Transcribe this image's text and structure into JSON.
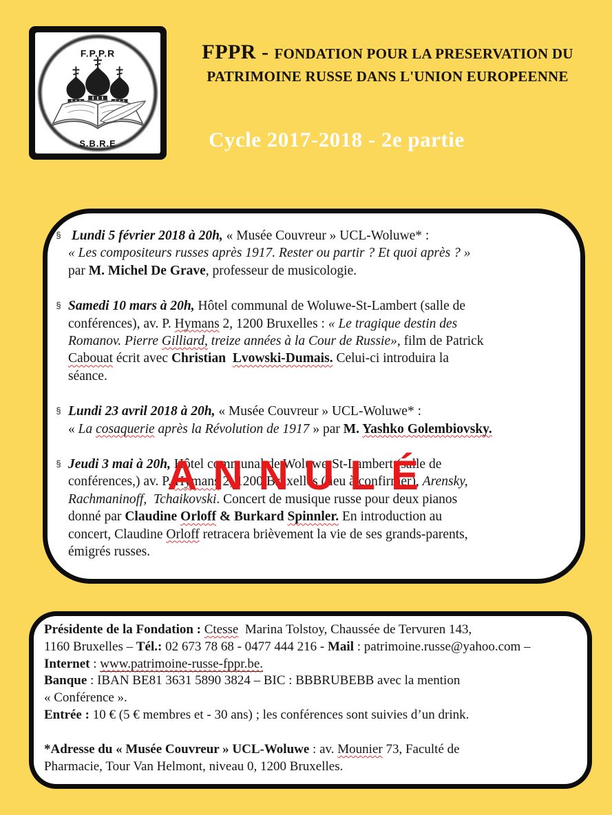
{
  "colors": {
    "background_yellow": "#FBD75A",
    "box_border_black": "#0d0d0d",
    "stamp_red": "#E61A1A",
    "squiggle_red": "#E03131",
    "cycle_white": "#FFFFFF"
  },
  "logo": {
    "top_text": "F.P.P.R",
    "bottom_text": "S.B.R.E"
  },
  "header": {
    "acronym": "FPPR - ",
    "org_line1": "FONDATION POUR LA PRESERVATION DU",
    "org_line2": "PATRIMOINE RUSSE DANS  L'UNION EUROPEENNE",
    "cycle": "Cycle  2017-2018 - 2e partie"
  },
  "stamp": {
    "text": "ANNULÉ"
  },
  "events": [
    {
      "bullet": "§",
      "segments": [
        {
          "c": "bi",
          "t": " Lundi 5 février 2018 à 20h,"
        },
        {
          "c": "",
          "t": " « Musée Couvreur » UCL-Woluwe* :\n"
        },
        {
          "c": "i",
          "t": "« Les compositeurs russes après 1917. Rester ou partir ? Et quoi après ? »"
        },
        {
          "c": "",
          "t": "\npar "
        },
        {
          "c": "b",
          "t": "M. Michel De Grave"
        },
        {
          "c": "",
          "t": ", professeur de musicologie."
        }
      ]
    },
    {
      "bullet": "§",
      "segments": [
        {
          "c": "bi",
          "t": "Samedi 10 mars à 20h,"
        },
        {
          "c": "",
          "t": " Hôtel communal de Woluwe-St-Lambert (salle de\nconférences), av. P. "
        },
        {
          "c": "sq",
          "t": "Hymans"
        },
        {
          "c": "",
          "t": " 2, 1200 Bruxelles : "
        },
        {
          "c": "i",
          "t": "« Le tragique destin des\nRomanov. Pierre "
        },
        {
          "c": "isq",
          "t": "Gilliard,"
        },
        {
          "c": "i",
          "t": " treize années à la Cour de Russie»,"
        },
        {
          "c": "",
          "t": " film de Patrick\n"
        },
        {
          "c": "sq",
          "t": "Cabouat"
        },
        {
          "c": "",
          "t": " écrit avec "
        },
        {
          "c": "b",
          "t": "Christian  "
        },
        {
          "c": "bsq",
          "t": "Lvowski-Dumais."
        },
        {
          "c": "",
          "t": " Celui-ci introduira la\nséance."
        }
      ]
    },
    {
      "bullet": "§",
      "segments": [
        {
          "c": "bi",
          "t": "Lundi 23 avril 2018 à 20h,"
        },
        {
          "c": "",
          "t": " « Musée Couvreur » UCL-Woluwe* :\n« "
        },
        {
          "c": "i",
          "t": "La "
        },
        {
          "c": "isq",
          "t": "cosaquerie"
        },
        {
          "c": "i",
          "t": " après la Révolution de 1917"
        },
        {
          "c": "",
          "t": " » par "
        },
        {
          "c": "b",
          "t": "M. "
        },
        {
          "c": "bsq",
          "t": "Yashko Golembiovsky."
        }
      ]
    },
    {
      "bullet": "§",
      "segments": [
        {
          "c": "bi",
          "t": "Jeudi 3 mai à 20h,"
        },
        {
          "c": "",
          "t": " Hôtel communal de Woluwe-St-Lambert (salle de\nconférences,) av. P. "
        },
        {
          "c": "sq",
          "t": "Hymans"
        },
        {
          "c": "",
          "t": " 2, 1200 Bruxelles (lieu à confirmer), "
        },
        {
          "c": "i",
          "t": "Arensky,\nRachmaninoff,  Tchaikovski"
        },
        {
          "c": "",
          "t": ". Concert de musique russe pour deux pianos\ndonné par "
        },
        {
          "c": "b",
          "t": "Claudine "
        },
        {
          "c": "bsq",
          "t": "Orloff"
        },
        {
          "c": "b",
          "t": " & Burkard "
        },
        {
          "c": "bsq",
          "t": "Spinnler."
        },
        {
          "c": "",
          "t": " En introduction au\nconcert, Claudine "
        },
        {
          "c": "sq",
          "t": "Orloff"
        },
        {
          "c": "",
          "t": " retracera brièvement la vie de ses grands-parents,\némigrés russes."
        }
      ]
    }
  ],
  "footer": {
    "paragraphs": [
      {
        "segments": [
          {
            "c": "b",
            "t": "Présidente de la Fondation : "
          },
          {
            "c": "sq",
            "t": "Ctesse"
          },
          {
            "c": "",
            "t": "  Marina Tolstoy, Chaussée de Tervuren 143,\n1160 Bruxelles – "
          },
          {
            "c": "b",
            "t": "Tél.:"
          },
          {
            "c": "",
            "t": " 02 673 78 68 - 0477 444 216 - "
          },
          {
            "c": "b",
            "t": "Mail"
          },
          {
            "c": "",
            "t": " : patrimoine.russe@yahoo.com –\n"
          },
          {
            "c": "b",
            "t": "Internet"
          },
          {
            "c": "",
            "t": " : "
          },
          {
            "c": "u sq",
            "t": "www.patrimoine-russe-fppr.be."
          }
        ]
      },
      {
        "segments": [
          {
            "c": "b",
            "t": "Banque"
          },
          {
            "c": "",
            "t": " : IBAN BE81 3631 5890 3824 – BIC : BBBRUBEBB avec la mention\n« Conférence »."
          }
        ]
      },
      {
        "segments": [
          {
            "c": "b",
            "t": "Entrée :"
          },
          {
            "c": "",
            "t": " 10 € (5 € membres et - 30 ans) ; les conférences sont suivies d’un drink."
          }
        ]
      },
      {
        "segments": [
          {
            "c": "b",
            "t": "*Adresse du « Musée Couvreur » UCL-Woluwe"
          },
          {
            "c": "",
            "t": " : av. "
          },
          {
            "c": "sq",
            "t": "Mounier"
          },
          {
            "c": "",
            "t": " 73, Faculté de\nPharmacie, Tour Van Helmont, niveau 0, 1200 Bruxelles."
          }
        ]
      }
    ]
  }
}
